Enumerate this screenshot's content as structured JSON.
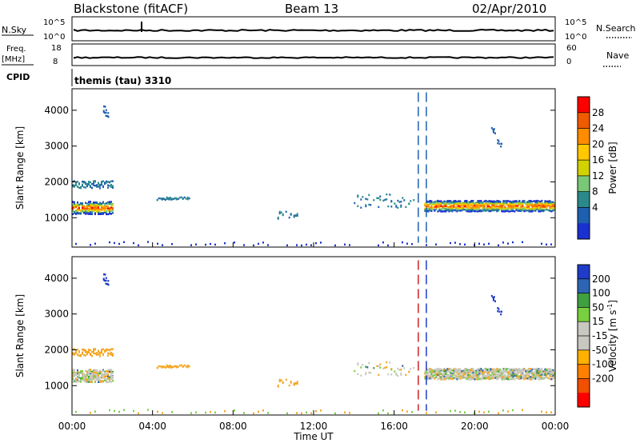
{
  "header": {
    "station": "Blackstone (fitACF)",
    "beam": "Beam 13",
    "date": "02/Apr/2010"
  },
  "panels": {
    "nsky_label": "N.Sky",
    "nsky_ticks": [
      "10^5",
      "10^0"
    ],
    "nsearch_label": "N.Search",
    "nsearch_ticks": [
      "10^5",
      "10^0"
    ],
    "freq_label_1": "Freq.",
    "freq_label_2": "[MHz]",
    "freq_ticks": [
      "18",
      "8"
    ],
    "nave_label": "Nave",
    "nave_ticks": [
      "60",
      "0"
    ],
    "cpid_label": "CPID",
    "cpid_text": "themis (tau) 3310"
  },
  "power_colorbar": {
    "label": "Power [dB]",
    "ticks": [
      "28",
      "24",
      "20",
      "16",
      "12",
      "8",
      "4"
    ],
    "colors": [
      "#ff0000",
      "#f05a00",
      "#ff8c00",
      "#ffc800",
      "#d2d200",
      "#78c878",
      "#2a8a8a",
      "#1f5fb0",
      "#1a30d0"
    ]
  },
  "velocity_colorbar": {
    "label": "Velocity [m s",
    "label_sup": "-1",
    "label_end": "]",
    "ticks": [
      "200",
      "100",
      "50",
      "15",
      "-15",
      "-50",
      "-100",
      "-200"
    ],
    "colors": [
      "#1e3cc8",
      "#2e64b4",
      "#3fa040",
      "#78d040",
      "#c8c8c0",
      "#c8c8c0",
      "#ffb000",
      "#ff8000",
      "#f05000",
      "#ff0000"
    ]
  },
  "chart_data": {
    "type": "heatmap",
    "x_ticks": [
      "00:00",
      "04:00",
      "08:00",
      "12:00",
      "16:00",
      "20:00",
      "00:00"
    ],
    "x_label": "Time UT",
    "y_label": "Slant Range [km]",
    "y_ticks": [
      "4000",
      "3000",
      "2000",
      "1000"
    ],
    "y_range_km": [
      180,
      4600
    ],
    "x_range_hours": [
      0,
      24
    ],
    "regions": [
      {
        "name": "morning-band",
        "start": 0.0,
        "end": 2.0,
        "center": 1300,
        "width": 350
      },
      {
        "name": "morning-upper",
        "start": 0.0,
        "end": 2.0,
        "center": 1950,
        "width": 200
      },
      {
        "name": "afternoon-band",
        "start": 17.5,
        "end": 24.0,
        "center": 1350,
        "width": 300
      },
      {
        "name": "scatter-0430",
        "start": 4.2,
        "end": 5.8,
        "center": 1560,
        "width": 80
      },
      {
        "name": "scatter-1030",
        "start": 10.2,
        "end": 11.2,
        "center": 1100,
        "width": 200
      },
      {
        "name": "scatter-1500",
        "start": 14.0,
        "end": 17.0,
        "center": 1500,
        "width": 400
      }
    ]
  }
}
